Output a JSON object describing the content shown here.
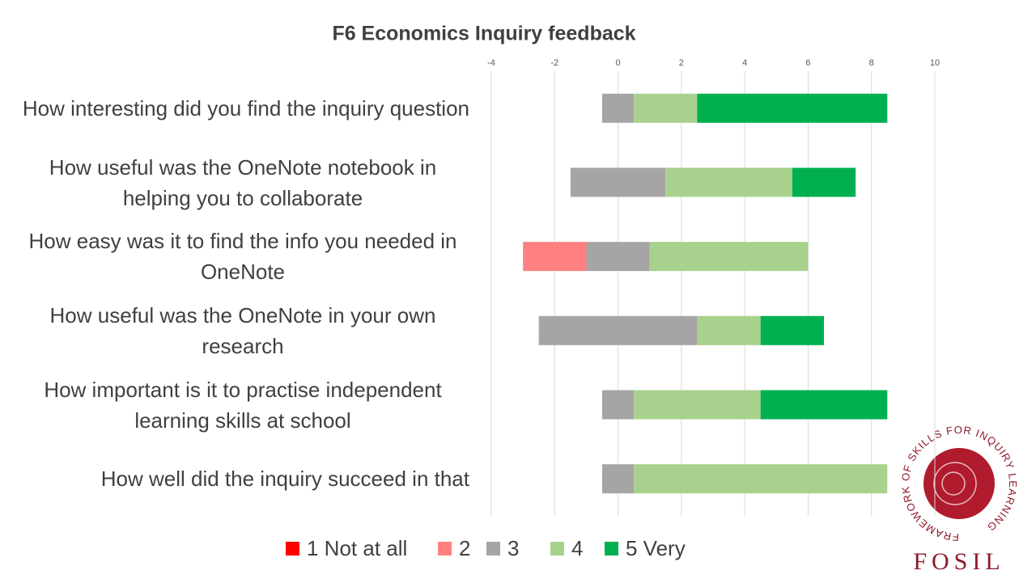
{
  "chart_data": {
    "type": "diverging_bar",
    "title": "F6 Economics Inquiry feedback",
    "categories": [
      "How interesting did you find the inquiry question",
      "How useful was the OneNote notebook in helping you to collaborate",
      "How easy was it to find the info you needed in OneNote",
      "How useful was the OneNote in your own research",
      "How important is it to practise independent learning skills at school",
      "How well did the inquiry succeed in that"
    ],
    "series": [
      {
        "name": "1 Not at all",
        "color": "#ff0000",
        "values": [
          0,
          0,
          0,
          0,
          0,
          0
        ]
      },
      {
        "name": "2",
        "color": "#ff8080",
        "values": [
          0,
          0,
          2,
          0,
          0,
          0
        ]
      },
      {
        "name": "3",
        "color": "#a5a5a5",
        "values": [
          1,
          3,
          2,
          5,
          1,
          1
        ]
      },
      {
        "name": "4",
        "color": "#a9d18e",
        "values": [
          2,
          4,
          5,
          2,
          4,
          8
        ]
      },
      {
        "name": "5 Very",
        "color": "#00b050",
        "values": [
          6,
          2,
          0,
          2,
          4,
          0
        ]
      }
    ],
    "xlim": [
      -4,
      10
    ],
    "xticks": [
      -4,
      -2,
      0,
      2,
      4,
      6,
      8,
      10
    ],
    "grid": true,
    "legend": "bottom"
  },
  "logo": {
    "ring": "FRAMEWORK OF SKILLS FOR INQUIRY LEARNING",
    "name": "FOSIL"
  }
}
